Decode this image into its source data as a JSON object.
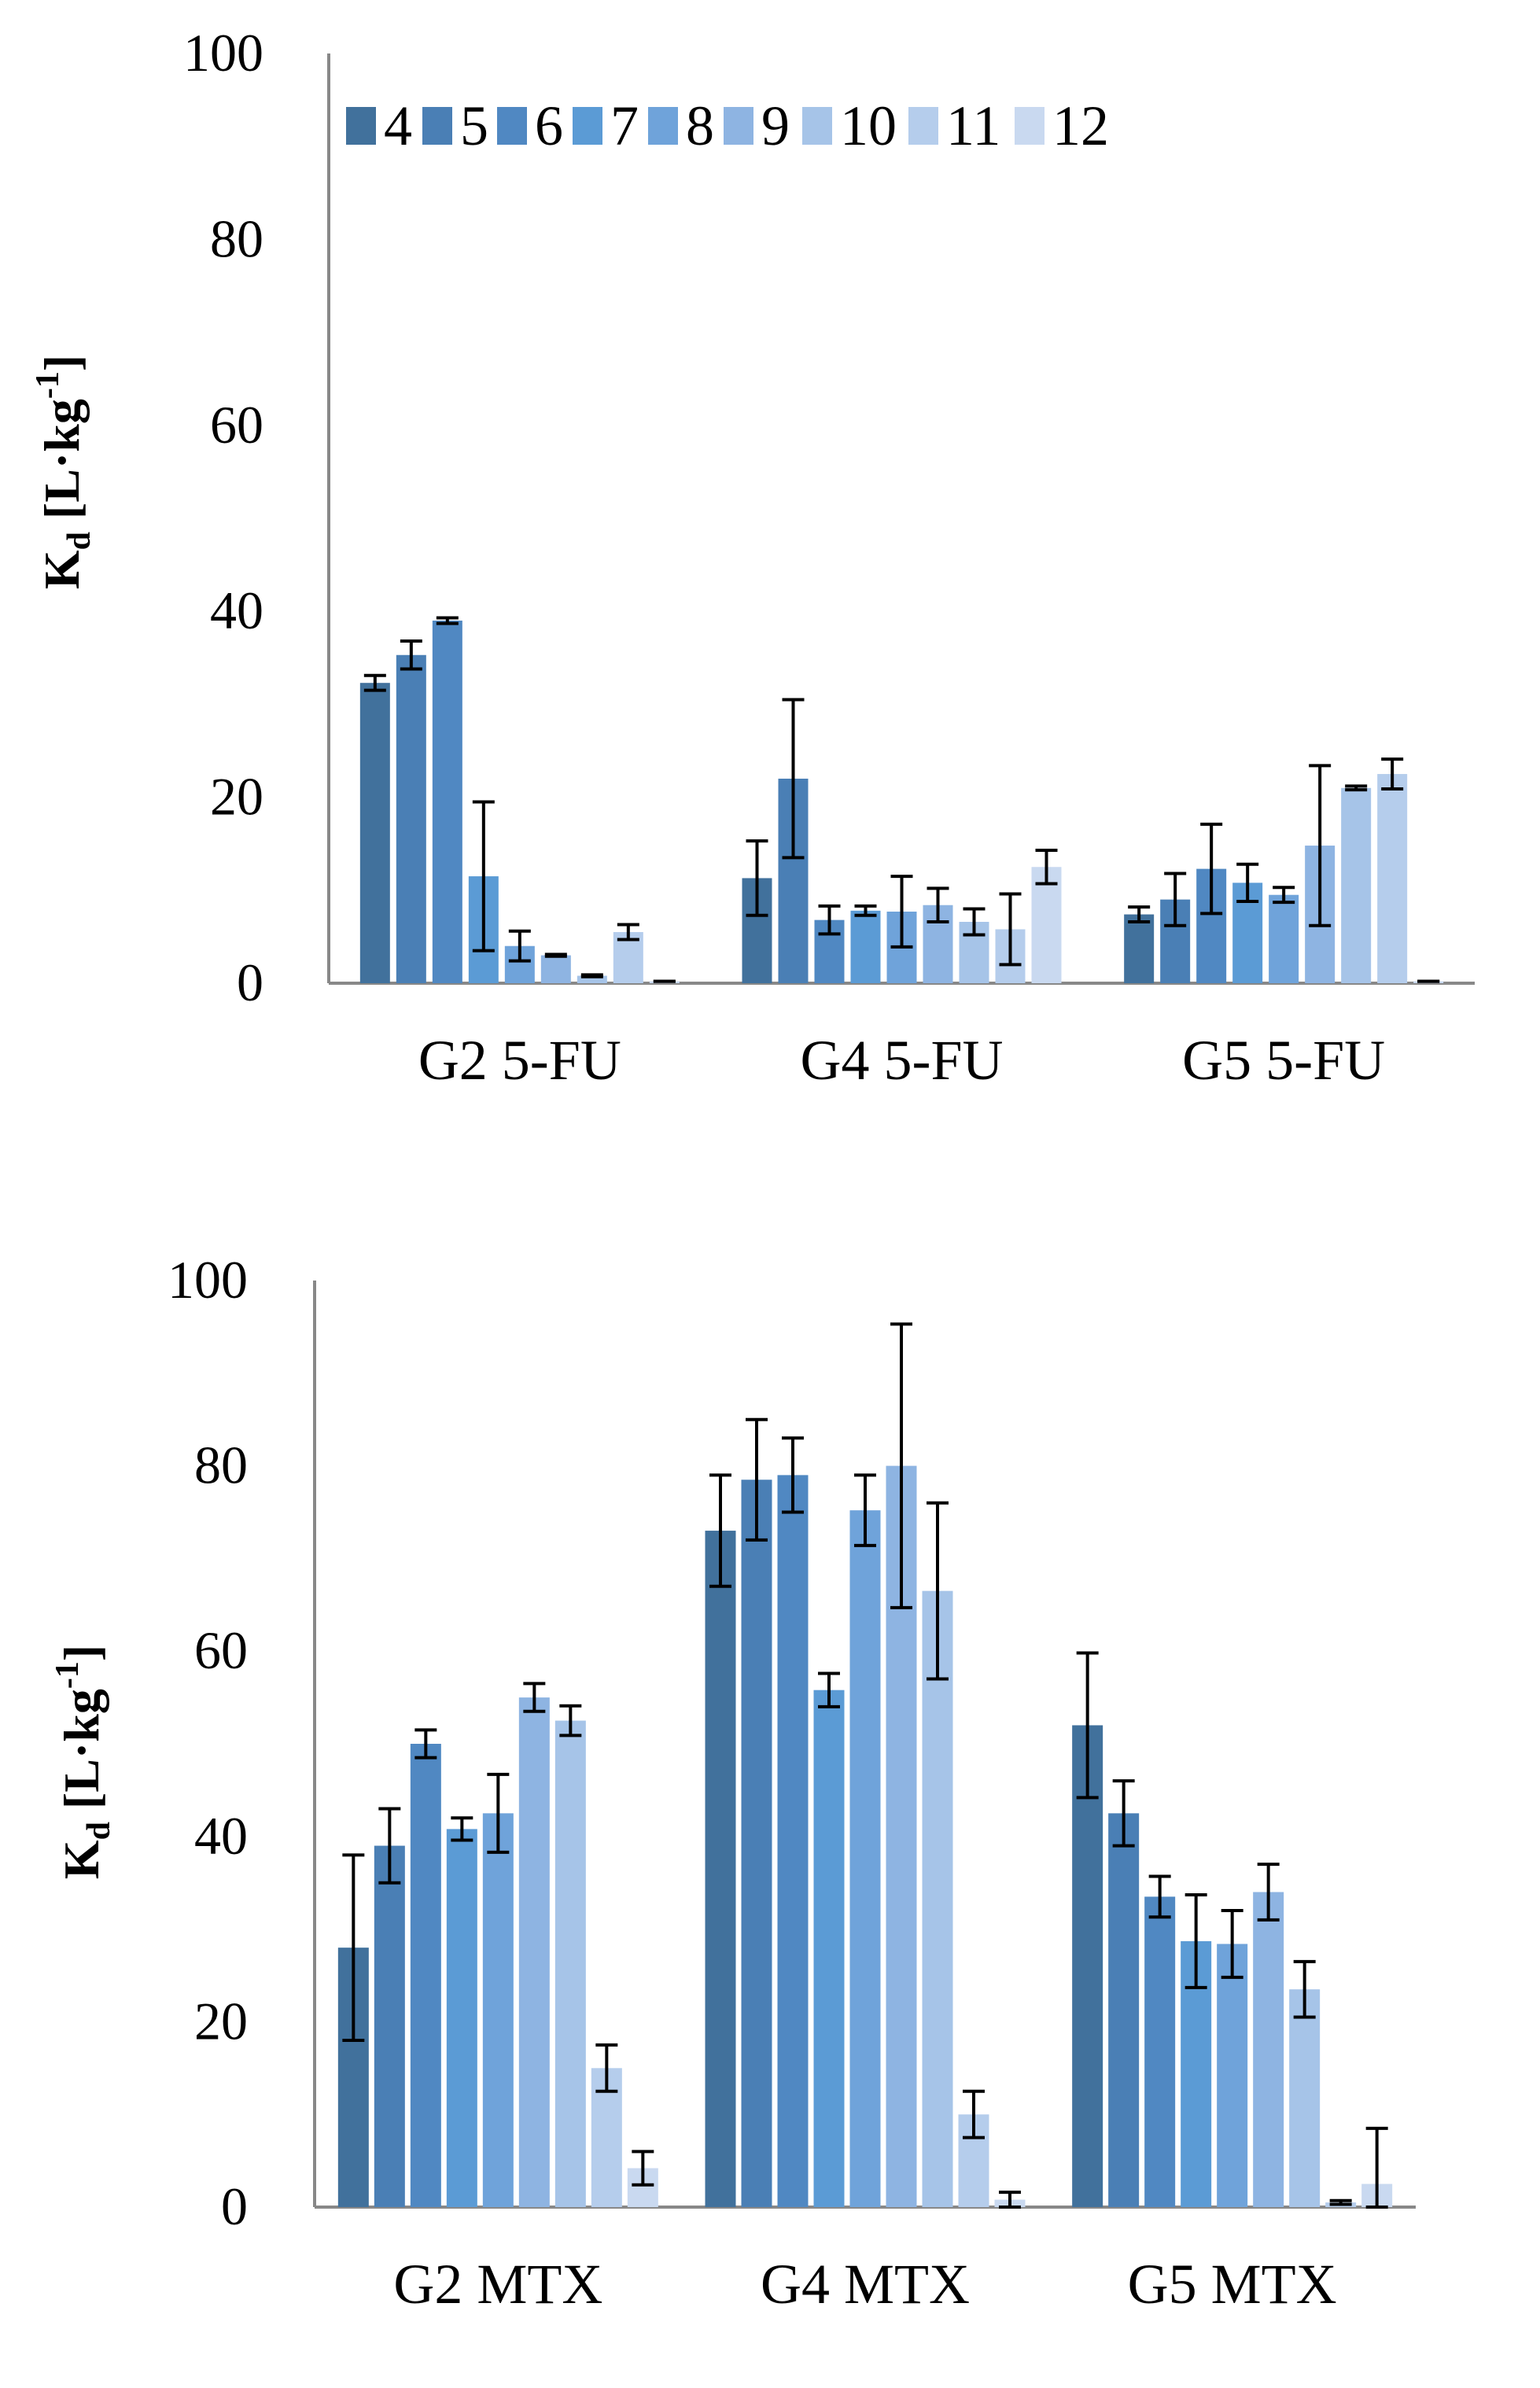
{
  "chart_data": [
    {
      "type": "bar",
      "categories": [
        "G2 5-FU",
        "G4 5-FU",
        "G5 5-FU"
      ],
      "ylabel": {
        "main": "K",
        "sub": "d",
        "unit": " [L·kg",
        "sup": "-1",
        "close": "]"
      },
      "ylim": [
        0,
        100
      ],
      "yticks": [
        0,
        20,
        40,
        60,
        80,
        100
      ],
      "grid": false,
      "legend": {
        "position": "top-right",
        "orientation": "horizontal"
      },
      "series": [
        {
          "name": "4",
          "color": "#41719c",
          "values": [
            32.3,
            11.3,
            7.4
          ],
          "errors": [
            0.8,
            4.0,
            0.8
          ]
        },
        {
          "name": "5",
          "color": "#4a7fb5",
          "values": [
            35.3,
            22.0,
            9.0
          ],
          "errors": [
            1.5,
            8.5,
            2.8
          ]
        },
        {
          "name": "6",
          "color": "#5088c2",
          "values": [
            39.0,
            6.8,
            12.3
          ],
          "errors": [
            0.3,
            1.5,
            4.8
          ]
        },
        {
          "name": "7",
          "color": "#5b9bd5",
          "values": [
            11.5,
            7.8,
            10.8
          ],
          "errors": [
            8.0,
            0.5,
            2.0
          ]
        },
        {
          "name": "8",
          "color": "#6fa3da",
          "values": [
            4.0,
            7.7,
            9.5
          ],
          "errors": [
            1.6,
            3.8,
            0.8
          ]
        },
        {
          "name": "9",
          "color": "#8eb4e2",
          "values": [
            3.0,
            8.4,
            14.8
          ],
          "errors": [
            0.1,
            1.8,
            8.6
          ]
        },
        {
          "name": "10",
          "color": "#a6c4e8",
          "values": [
            0.8,
            6.6,
            21.0
          ],
          "errors": [
            0.1,
            1.4,
            0.2
          ]
        },
        {
          "name": "11",
          "color": "#b5cdec",
          "values": [
            5.5,
            5.8,
            22.5
          ],
          "errors": [
            0.8,
            3.8,
            1.6
          ]
        },
        {
          "name": "12",
          "color": "#c9d9f0",
          "values": [
            0.2,
            12.5,
            0.2
          ],
          "errors": [
            0.0,
            1.8,
            0.0
          ]
        }
      ]
    },
    {
      "type": "bar",
      "categories": [
        "G2 MTX",
        "G4 MTX",
        "G5 MTX"
      ],
      "ylabel": {
        "main": "K",
        "sub": "d",
        "unit": " [L·kg",
        "sup": "-1",
        "close": "]"
      },
      "ylim": [
        0,
        100
      ],
      "yticks": [
        0,
        20,
        40,
        60,
        80,
        100
      ],
      "grid": false,
      "legend": null,
      "series": [
        {
          "name": "4",
          "color": "#41719c",
          "values": [
            28.0,
            73.0,
            52.0
          ],
          "errors": [
            10.0,
            6.0,
            7.8
          ]
        },
        {
          "name": "5",
          "color": "#4a7fb5",
          "values": [
            39.0,
            78.5,
            42.5
          ],
          "errors": [
            4.0,
            6.5,
            3.5
          ]
        },
        {
          "name": "6",
          "color": "#5088c2",
          "values": [
            50.0,
            79.0,
            33.5
          ],
          "errors": [
            1.5,
            4.0,
            2.2
          ]
        },
        {
          "name": "7",
          "color": "#5b9bd5",
          "values": [
            40.8,
            55.8,
            28.7
          ],
          "errors": [
            1.2,
            1.8,
            5.0
          ]
        },
        {
          "name": "8",
          "color": "#6fa3da",
          "values": [
            42.5,
            75.2,
            28.4
          ],
          "errors": [
            4.2,
            3.8,
            3.6
          ]
        },
        {
          "name": "9",
          "color": "#8eb4e2",
          "values": [
            55.0,
            80.0,
            34.0
          ],
          "errors": [
            1.5,
            15.3,
            3.0
          ]
        },
        {
          "name": "10",
          "color": "#a6c4e8",
          "values": [
            52.5,
            66.5,
            23.5
          ],
          "errors": [
            1.6,
            9.5,
            3.0
          ]
        },
        {
          "name": "11",
          "color": "#b5cdec",
          "values": [
            15.0,
            10.0,
            0.5
          ],
          "errors": [
            2.5,
            2.5,
            0.2
          ]
        },
        {
          "name": "12",
          "color": "#c9d9f0",
          "values": [
            4.2,
            0.8,
            2.5
          ],
          "errors": [
            1.8,
            0.8,
            6.0
          ]
        }
      ]
    }
  ]
}
